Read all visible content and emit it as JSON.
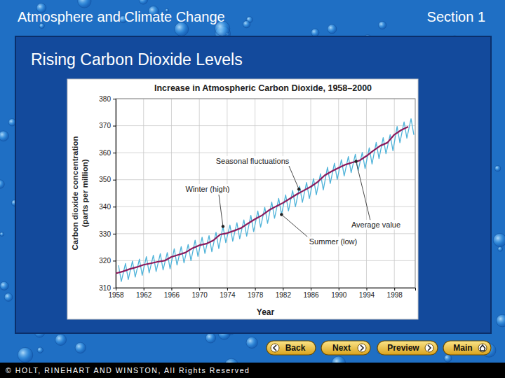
{
  "slide": {
    "header": "Atmosphere and Climate Change",
    "section": "Section 1",
    "heading": "Rising Carbon Dioxide Levels",
    "buttons": [
      "Back",
      "Next",
      "Preview",
      "Main"
    ],
    "footer": "© HOLT, RINEHART AND WINSTON, All Rights Reserved"
  },
  "chart_data": {
    "type": "line",
    "title": "Increase in Atmospheric Carbon Dioxide, 1958–2000",
    "xlabel": "Year",
    "ylabel": "Carbon dioxide concentration (parts per million)",
    "xlim": [
      1958,
      2001
    ],
    "xticks": [
      1958,
      1962,
      1966,
      1970,
      1974,
      1978,
      1982,
      1986,
      1990,
      1994,
      1998
    ],
    "ylim": [
      310,
      380
    ],
    "yticks": [
      310,
      320,
      330,
      340,
      350,
      360,
      370,
      380
    ],
    "grid": true,
    "series": [
      {
        "color": "#4fb3d9",
        "x": [
          1958.4,
          1958.8,
          1959.4,
          1959.8,
          1960.4,
          1960.8,
          1961.4,
          1961.8,
          1962.4,
          1962.8,
          1963.4,
          1963.8,
          1964.4,
          1964.8,
          1965.4,
          1965.8,
          1966.4,
          1966.8,
          1967.4,
          1967.8,
          1968.4,
          1968.8,
          1969.4,
          1969.8,
          1970.4,
          1970.8,
          1971.4,
          1971.8,
          1972.4,
          1972.8,
          1973.4,
          1973.8,
          1974.4,
          1974.8,
          1975.4,
          1975.8,
          1976.4,
          1976.8,
          1977.4,
          1977.8,
          1978.4,
          1978.8,
          1979.4,
          1979.8,
          1980.4,
          1980.8,
          1981.4,
          1981.8,
          1982.4,
          1982.8,
          1983.4,
          1983.8,
          1984.4,
          1984.8,
          1985.4,
          1985.8,
          1986.4,
          1986.8,
          1987.4,
          1987.8,
          1988.4,
          1988.8,
          1989.4,
          1989.8,
          1990.4,
          1990.8,
          1991.4,
          1991.8,
          1992.4,
          1992.8,
          1993.4,
          1993.8,
          1994.4,
          1994.8,
          1995.4,
          1995.8,
          1996.4,
          1996.8,
          1997.4,
          1997.8,
          1998.4,
          1998.8,
          1999.4,
          1999.8,
          2000.4,
          2000.8
        ],
        "values": [
          318.3,
          312.3,
          319.0,
          313.0,
          319.9,
          313.9,
          320.6,
          314.6,
          321.5,
          315.5,
          322.0,
          316.0,
          322.6,
          316.6,
          323.0,
          317.0,
          324.4,
          318.4,
          325.2,
          319.2,
          326.0,
          320.0,
          327.6,
          321.6,
          328.7,
          322.7,
          329.3,
          323.3,
          330.5,
          324.5,
          332.7,
          326.7,
          333.2,
          327.2,
          334.1,
          328.1,
          335.1,
          329.1,
          336.8,
          330.8,
          338.4,
          332.4,
          339.8,
          333.8,
          341.7,
          335.7,
          343.1,
          337.1,
          344.4,
          338.4,
          346.0,
          340.0,
          347.6,
          341.6,
          349.0,
          343.0,
          350.4,
          344.4,
          352.2,
          346.2,
          354.6,
          348.6,
          356.1,
          350.1,
          357.4,
          351.4,
          358.6,
          352.6,
          359.4,
          353.4,
          360.1,
          354.1,
          361.8,
          355.8,
          363.8,
          357.8,
          365.6,
          359.6,
          366.7,
          360.7,
          369.7,
          363.7,
          371.4,
          365.4,
          372.6,
          366.6
        ]
      },
      {
        "color": "#8b1a5c",
        "x": [
          1958,
          1959,
          1960,
          1961,
          1962,
          1963,
          1964,
          1965,
          1966,
          1967,
          1968,
          1969,
          1970,
          1971,
          1972,
          1973,
          1974,
          1975,
          1976,
          1977,
          1978,
          1979,
          1980,
          1981,
          1982,
          1983,
          1984,
          1985,
          1986,
          1987,
          1988,
          1989,
          1990,
          1991,
          1992,
          1993,
          1994,
          1995,
          1996,
          1997,
          1998,
          1999,
          2000
        ],
        "values": [
          315.3,
          316.0,
          316.9,
          317.6,
          318.5,
          319.0,
          319.6,
          320.0,
          321.4,
          322.2,
          323.0,
          324.6,
          325.7,
          326.3,
          327.5,
          329.7,
          330.2,
          331.1,
          332.1,
          333.8,
          335.4,
          336.8,
          338.7,
          340.1,
          341.4,
          343.0,
          344.6,
          346.0,
          347.4,
          349.2,
          351.6,
          353.1,
          354.4,
          355.6,
          356.4,
          357.1,
          358.8,
          360.8,
          362.6,
          363.7,
          366.7,
          368.4,
          369.6
        ]
      }
    ],
    "annotations": [
      {
        "text": "Seasonal fluctuations",
        "x": 1984.3,
        "y": 346.5
      },
      {
        "text": "Winter (high)",
        "x": 1973.4,
        "y": 332.7
      },
      {
        "text": "Average value",
        "x": 1992.5,
        "y": 356.8
      },
      {
        "text": "Summer (low)",
        "x": 1981.8,
        "y": 337.1
      }
    ]
  }
}
